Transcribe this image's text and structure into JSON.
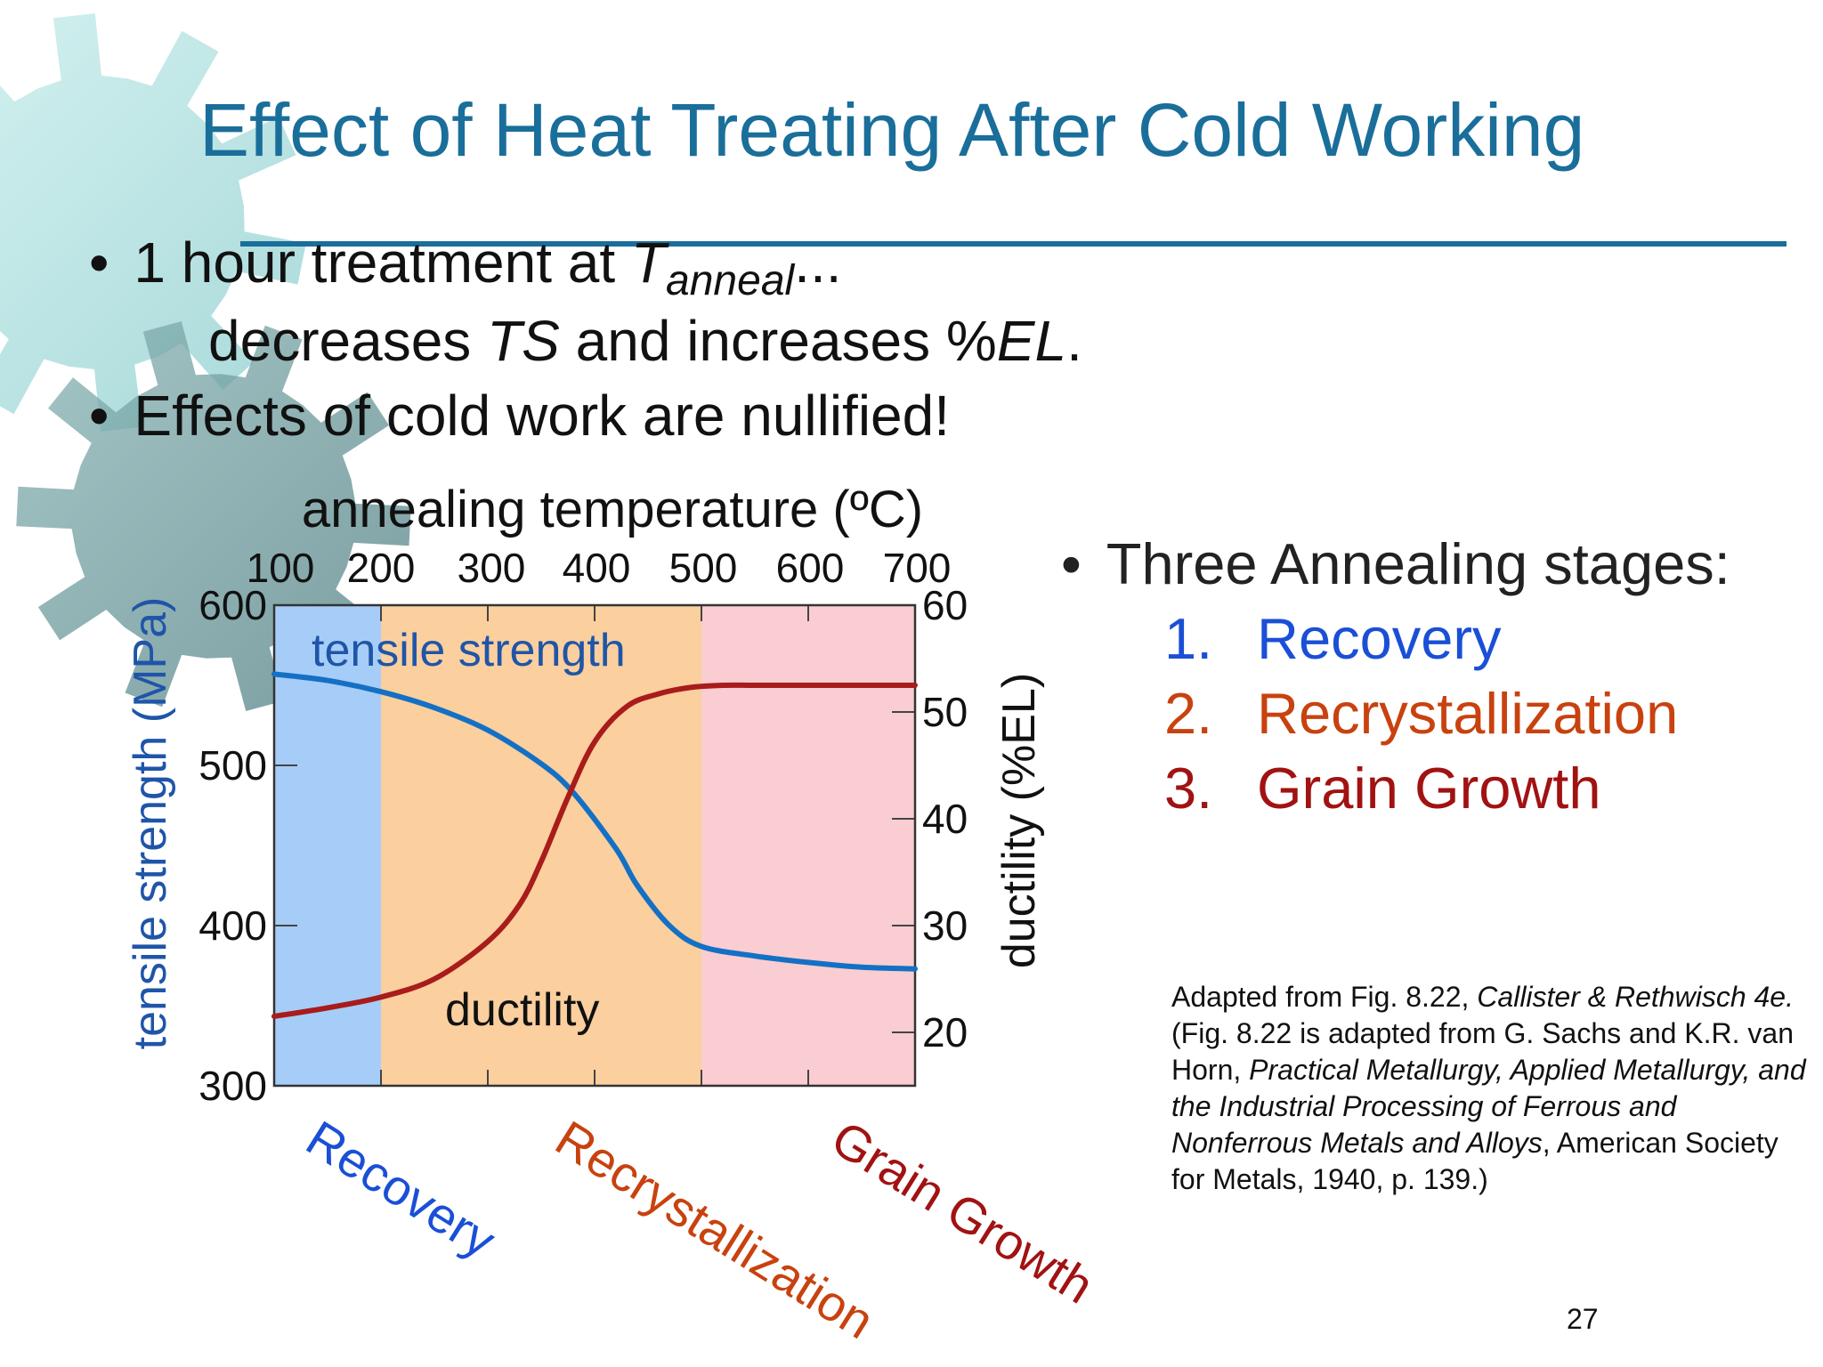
{
  "slide": {
    "title": "Effect of Heat Treating After Cold Working",
    "page_number": "27"
  },
  "bullets": {
    "b1_prefix": "1 hour treatment at ",
    "b1_var": "T",
    "b1_sub": "anneal",
    "b1_suffix": "...",
    "b1b_prefix": "decreases ",
    "b1b_ts": "TS",
    "b1b_mid": " and increases %",
    "b1b_el": "EL",
    "b1b_end": ".",
    "b2": "Effects of cold work are nullified!",
    "b3": "Three Annealing stages:"
  },
  "stages": [
    {
      "num": "1.",
      "label": "Recovery",
      "color": "#1a4fd6"
    },
    {
      "num": "2.",
      "label": "Recrystallization",
      "color": "#c8420f"
    },
    {
      "num": "3.",
      "label": "Grain Growth",
      "color": "#a11212"
    }
  ],
  "citation": {
    "p1": "Adapted from Fig. 8.22, ",
    "p1i": "Callister & Rethwisch 4e.",
    "p2": " (Fig. 8.22 is adapted from G. Sachs and K.R. van Horn, ",
    "p2i": "Practical Metallurgy, Applied Metallurgy, and the Industrial Processing of Ferrous and Nonferrous Metals and Alloys",
    "p3": ", American Society for Metals, 1940, p. 139.)"
  },
  "colors": {
    "title": "#1a6e9a",
    "tensile": "#1470c4",
    "ductility": "#a81c1c",
    "recovery_band": "#a6cdf7",
    "recryst_band": "#fbcf9e",
    "grain_band": "#f9cdd1"
  },
  "chart_data": {
    "type": "line",
    "xlabel": "annealing temperature (ºC)",
    "ylabel_left": "tensile strength (MPa)",
    "ylabel_right": "ductility (%EL)",
    "xlim": [
      100,
      700
    ],
    "xticks": [
      "100",
      "200",
      "300",
      "400",
      "500",
      "600",
      "700"
    ],
    "ylim_left": [
      300,
      600
    ],
    "yticks_left": [
      "300",
      "400",
      "500",
      "600"
    ],
    "ylim_right": [
      15,
      60
    ],
    "yticks_right": [
      "20",
      "30",
      "40",
      "50",
      "60"
    ],
    "regions": [
      {
        "name": "Recovery",
        "from": 100,
        "to": 200
      },
      {
        "name": "Recrystallization",
        "from": 200,
        "to": 500
      },
      {
        "name": "Grain Growth",
        "from": 500,
        "to": 700
      }
    ],
    "series": [
      {
        "name": "tensile strength",
        "axis": "left",
        "x": [
          100,
          150,
          200,
          250,
          300,
          350,
          380,
          420,
          440,
          470,
          500,
          550,
          600,
          650,
          700
        ],
        "y": [
          557,
          553,
          546,
          536,
          522,
          501,
          483,
          448,
          425,
          400,
          387,
          381,
          377,
          374,
          373
        ]
      },
      {
        "name": "ductility",
        "axis": "right",
        "x": [
          100,
          150,
          200,
          250,
          300,
          330,
          350,
          375,
          400,
          430,
          460,
          490,
          520,
          550,
          600,
          700
        ],
        "y": [
          21.5,
          22.3,
          23.3,
          25,
          28.5,
          32,
          36,
          42,
          47.2,
          50.5,
          51.7,
          52.3,
          52.5,
          52.5,
          52.5,
          52.5
        ]
      }
    ]
  }
}
